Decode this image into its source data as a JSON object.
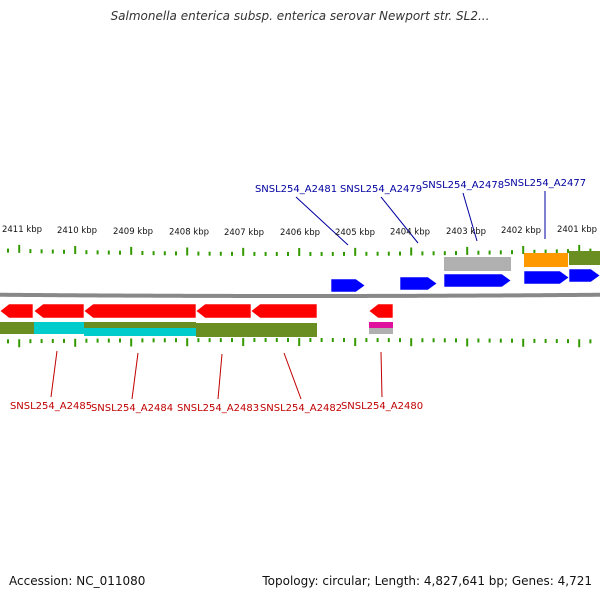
{
  "title": "Salmonella enterica subsp. enterica serovar Newport str. SL2...",
  "footer": {
    "accession": "Accession: NC_011080",
    "summary": "Topology: circular; Length: 4,827,641 bp; Genes: 4,721"
  },
  "colors": {
    "forward_gene": "#0000ff",
    "reverse_gene": "#ff0000",
    "forward_label": "#0000a0",
    "reverse_label": "#c00000",
    "tick": "#339900",
    "backbone": "#888888",
    "cog_olive": "#6b8e23",
    "cog_cyan": "#00cccc",
    "cog_gray": "#b0b0b0",
    "cog_orange": "#ff9900",
    "cog_magenta": "#e0119d"
  },
  "scale": {
    "unit": "kbp",
    "labels": [
      "2411 kbp",
      "2410 kbp",
      "2409 kbp",
      "2408 kbp",
      "2407 kbp",
      "2406 kbp",
      "2405 kbp",
      "2404 kbp",
      "2403 kbp",
      "2402 kbp",
      "2401 kbp"
    ]
  },
  "genes": [
    {
      "id": "SNSL254_A2485",
      "strand": "-",
      "cog": "cyan"
    },
    {
      "id": "SNSL254_A2484",
      "strand": "-",
      "cog": "cyan"
    },
    {
      "id": "SNSL254_A2483",
      "strand": "-",
      "cog": "olive"
    },
    {
      "id": "SNSL254_A2482",
      "strand": "-",
      "cog": "olive"
    },
    {
      "id": "SNSL254_A2481",
      "strand": "+",
      "cog": "none"
    },
    {
      "id": "SNSL254_A2480",
      "strand": "-",
      "cog": "magenta"
    },
    {
      "id": "SNSL254_A2479",
      "strand": "+",
      "cog": "none"
    },
    {
      "id": "SNSL254_A2478",
      "strand": "+",
      "cog": "gray"
    },
    {
      "id": "SNSL254_A2477",
      "strand": "+",
      "cog": "orange"
    }
  ]
}
